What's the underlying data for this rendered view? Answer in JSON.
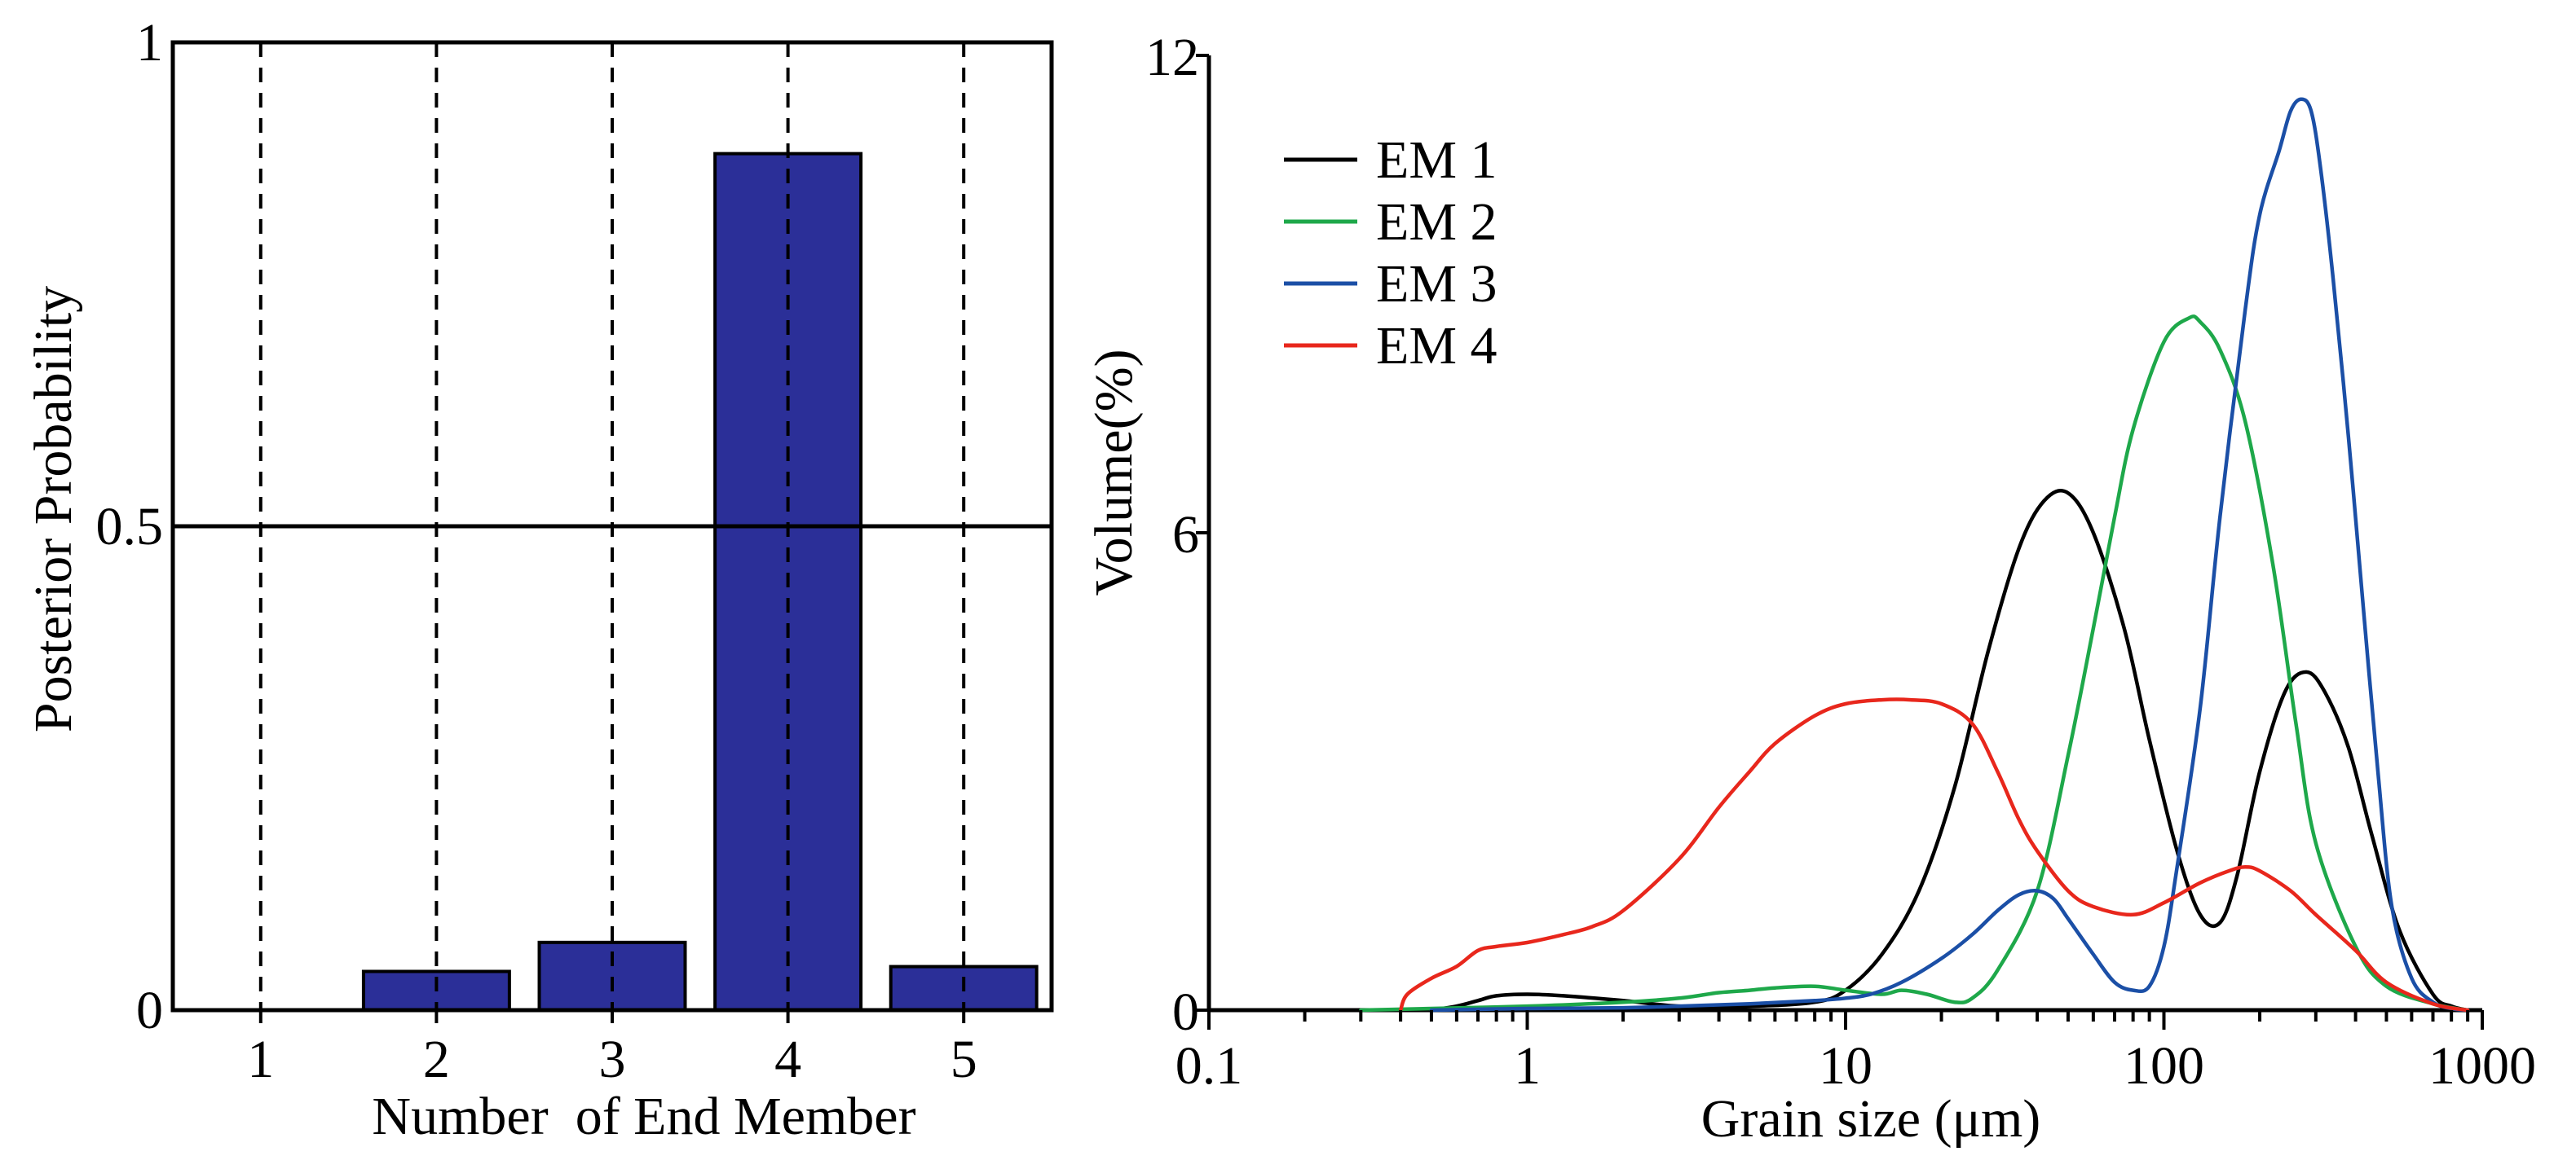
{
  "chart_data": [
    {
      "type": "bar",
      "xlabel": "Number  of End Member",
      "ylabel": "Posterior Probability",
      "categories": [
        "1",
        "2",
        "3",
        "4",
        "5"
      ],
      "values": [
        0,
        0.04,
        0.07,
        0.885,
        0.045
      ],
      "ylim": [
        0,
        1
      ],
      "yticks": [
        {
          "value": 0,
          "label": "0"
        },
        {
          "value": 0.5,
          "label": "0.5"
        },
        {
          "value": 1,
          "label": "1"
        }
      ],
      "reference_line": 0.5,
      "grid": "dashed vertical lines at each category",
      "bar_color": "#2B2F98"
    },
    {
      "type": "line",
      "xscale": "log",
      "xlabel": "Grain size (μm)",
      "ylabel": "Volume(%)",
      "xlim": [
        0.1,
        1000
      ],
      "ylim": [
        0,
        12
      ],
      "xticks": [
        {
          "value": 0.1,
          "label": "0.1"
        },
        {
          "value": 1,
          "label": "1"
        },
        {
          "value": 10,
          "label": "10"
        },
        {
          "value": 100,
          "label": "100"
        },
        {
          "value": 1000,
          "label": "1000"
        }
      ],
      "yticks": [
        {
          "value": 0,
          "label": "0"
        },
        {
          "value": 6,
          "label": "6"
        },
        {
          "value": 12,
          "label": "12"
        }
      ],
      "legend_position": "top-left",
      "series": [
        {
          "name": "EM 1",
          "color": "#000000",
          "x": [
            0.5,
            0.6,
            0.7,
            0.8,
            1,
            1.3,
            2,
            3,
            5,
            8,
            10,
            13,
            17,
            22,
            28,
            35,
            42,
            50,
            60,
            75,
            90,
            110,
            130,
            150,
            170,
            200,
            240,
            280,
            320,
            380,
            450,
            550,
            700,
            800,
            900
          ],
          "y": [
            0,
            0.05,
            0.12,
            0.18,
            0.2,
            0.18,
            0.12,
            0.05,
            0.05,
            0.1,
            0.25,
            0.7,
            1.5,
            2.8,
            4.5,
            5.8,
            6.4,
            6.5,
            6.0,
            4.8,
            3.4,
            2.0,
            1.2,
            1.1,
            1.7,
            3.0,
            4.0,
            4.25,
            4.0,
            3.3,
            2.2,
            1.0,
            0.2,
            0.05,
            0
          ]
        },
        {
          "name": "EM 2",
          "color": "#1EA84A",
          "x": [
            0.3,
            0.5,
            1,
            2,
            3,
            4,
            5,
            6,
            8,
            10,
            13,
            15,
            18,
            22,
            25,
            30,
            40,
            50,
            60,
            70,
            80,
            100,
            120,
            130,
            150,
            180,
            220,
            260,
            300,
            400,
            500,
            700,
            900
          ],
          "y": [
            0,
            0.02,
            0.05,
            0.1,
            0.15,
            0.22,
            0.25,
            0.28,
            0.3,
            0.25,
            0.2,
            0.25,
            0.2,
            0.1,
            0.15,
            0.5,
            1.5,
            3.2,
            4.8,
            6.2,
            7.3,
            8.4,
            8.7,
            8.65,
            8.3,
            7.4,
            5.6,
            3.6,
            2.1,
            0.8,
            0.3,
            0.08,
            0
          ]
        },
        {
          "name": "EM 3",
          "color": "#1B4FA6",
          "x": [
            0.5,
            1,
            2,
            3,
            5,
            8,
            10,
            12,
            15,
            20,
            25,
            30,
            35,
            40,
            45,
            50,
            60,
            70,
            80,
            90,
            100,
            110,
            130,
            150,
            180,
            200,
            230,
            250,
            270,
            290,
            310,
            340,
            380,
            420,
            470,
            520,
            600,
            700,
            800,
            900
          ],
          "y": [
            0,
            0.02,
            0.03,
            0.05,
            0.08,
            0.12,
            0.15,
            0.2,
            0.35,
            0.65,
            0.95,
            1.25,
            1.45,
            1.5,
            1.4,
            1.15,
            0.7,
            0.35,
            0.25,
            0.3,
            0.8,
            1.8,
            3.8,
            6.2,
            8.8,
            10.0,
            10.8,
            11.3,
            11.45,
            11.3,
            10.6,
            9.2,
            7.2,
            5.2,
            3.0,
            1.3,
            0.4,
            0.1,
            0.02,
            0
          ]
        },
        {
          "name": "EM 4",
          "color": "#E8271C",
          "x": [
            0.4,
            0.42,
            0.5,
            0.6,
            0.7,
            0.8,
            1,
            1.3,
            1.6,
            2,
            3,
            4,
            5,
            6,
            8,
            10,
            13,
            16,
            20,
            25,
            30,
            35,
            40,
            50,
            60,
            80,
            100,
            130,
            160,
            180,
            200,
            250,
            300,
            400,
            500,
            700,
            900
          ],
          "y": [
            0,
            0.2,
            0.4,
            0.55,
            0.75,
            0.8,
            0.85,
            0.95,
            1.05,
            1.25,
            1.9,
            2.55,
            3.0,
            3.35,
            3.7,
            3.85,
            3.9,
            3.9,
            3.85,
            3.6,
            3.0,
            2.4,
            2.0,
            1.5,
            1.3,
            1.2,
            1.35,
            1.6,
            1.75,
            1.8,
            1.75,
            1.5,
            1.2,
            0.75,
            0.35,
            0.08,
            0
          ]
        }
      ]
    }
  ]
}
